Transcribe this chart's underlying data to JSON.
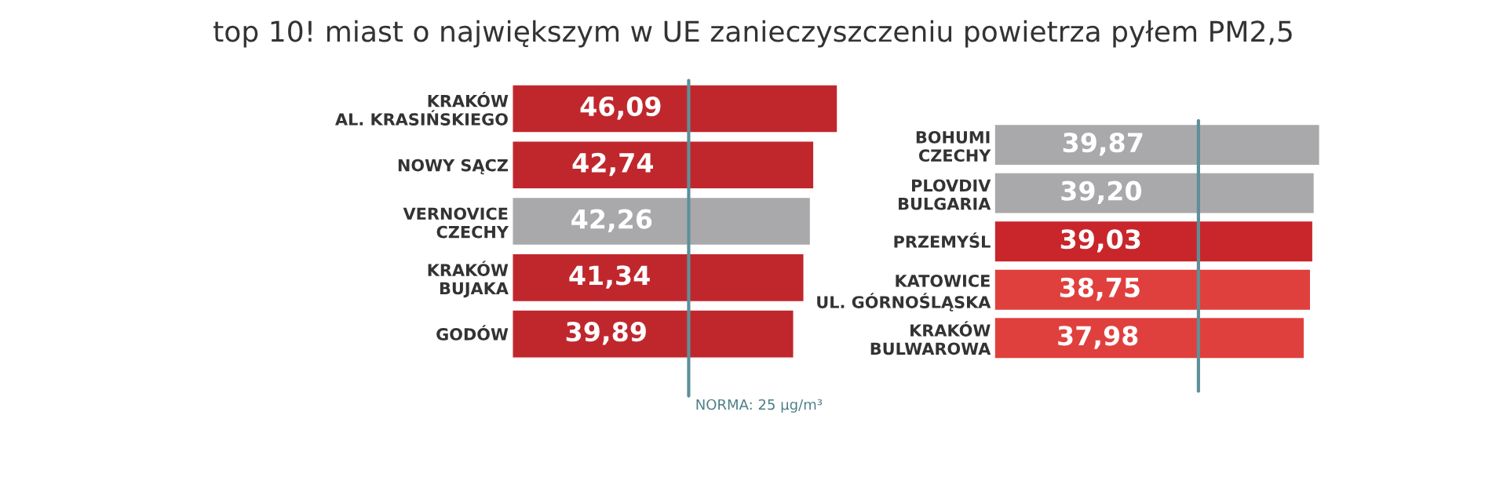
{
  "chart_data": [
    {
      "type": "bar",
      "orientation": "horizontal",
      "title": "top 10! miast o największym w UE zanieczyszczeniu powietrza pyłem PM2,5",
      "categories": [
        "KRAKÓW\nAL. KRASIŃSKIEGO",
        "NOWY SĄCZ",
        "VERNOVICE\nCZECHY",
        "KRAKÓW\nBUJAKA",
        "GODÓW"
      ],
      "values": [
        46.09,
        42.74,
        42.26,
        41.34,
        39.89
      ],
      "colors": [
        "#c0272d",
        "#c0272d",
        "#a9a9ab",
        "#c0272d",
        "#c0272d"
      ],
      "value_labels": [
        "46,09",
        "42,74",
        "42,26",
        "41,34",
        "39,89"
      ],
      "tick_labels": "y",
      "grid": false,
      "ref_lines": [
        {
          "axis": "x",
          "value": 25,
          "label": "NORMA: 25 µg/m³",
          "color": "#5e8f99"
        }
      ]
    },
    {
      "type": "bar",
      "orientation": "horizontal",
      "categories": [
        "BOHUMI\nCZECHY",
        "PLOVDIV\nBULGARIA",
        "PRZEMYŚL",
        "KATOWICE\nUL. GÓRNOŚLĄSKA",
        "KRAKÓW\nBULWAROWA"
      ],
      "values": [
        39.87,
        39.2,
        39.03,
        38.75,
        37.98
      ],
      "colors": [
        "#a9a9ab",
        "#a9a9ab",
        "#c9262b",
        "#e0403d",
        "#e0403d"
      ],
      "value_labels": [
        "39,87",
        "39,20",
        "39,03",
        "38,75",
        "37,98"
      ],
      "tick_labels": "y",
      "grid": false,
      "ref_lines": [
        {
          "axis": "x",
          "value": 25,
          "color": "#5e8f99"
        }
      ]
    }
  ]
}
